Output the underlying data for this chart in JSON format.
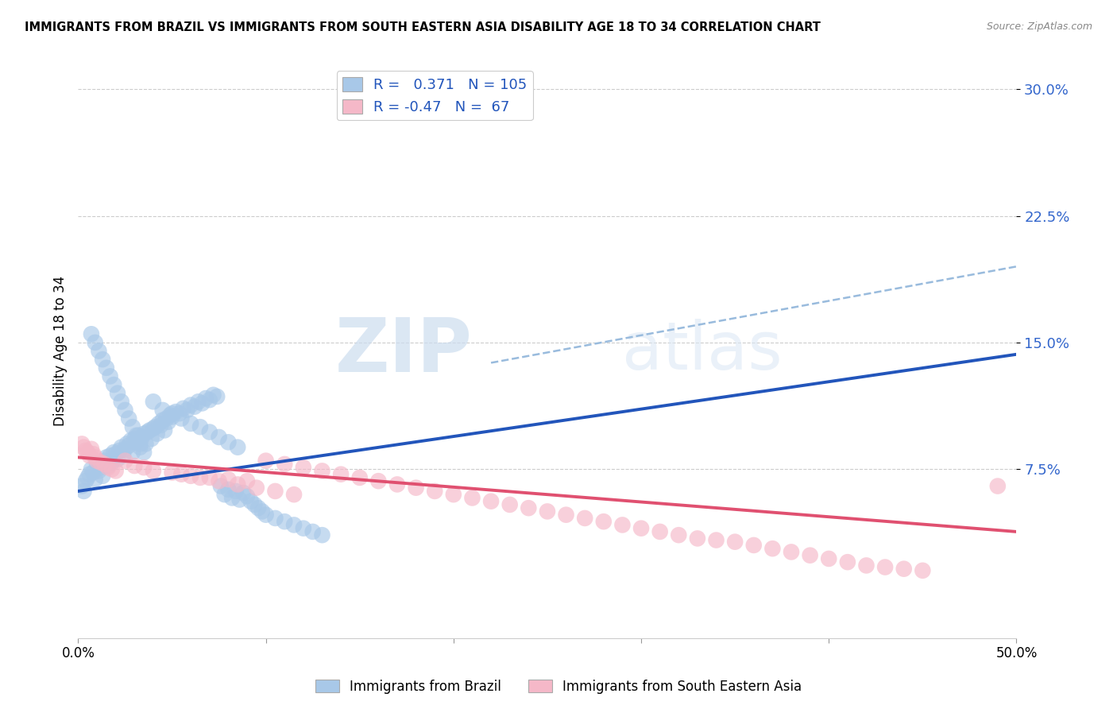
{
  "title": "IMMIGRANTS FROM BRAZIL VS IMMIGRANTS FROM SOUTH EASTERN ASIA DISABILITY AGE 18 TO 34 CORRELATION CHART",
  "source": "Source: ZipAtlas.com",
  "ylabel": "Disability Age 18 to 34",
  "ytick_values": [
    0.075,
    0.15,
    0.225,
    0.3
  ],
  "ytick_labels": [
    "7.5%",
    "15.0%",
    "22.5%",
    "30.0%"
  ],
  "xlim": [
    0.0,
    0.5
  ],
  "ylim": [
    -0.025,
    0.315
  ],
  "brazil_R": 0.371,
  "brazil_N": 105,
  "sea_R": -0.47,
  "sea_N": 67,
  "brazil_color": "#a8c8e8",
  "sea_color": "#f5b8c8",
  "brazil_line_color": "#2255bb",
  "sea_line_color": "#e05070",
  "dashed_line_color": "#99bbdd",
  "legend_label_brazil": "Immigrants from Brazil",
  "legend_label_sea": "Immigrants from South Eastern Asia",
  "watermark_zip": "ZIP",
  "watermark_atlas": "atlas",
  "brazil_trend_y_start": 0.062,
  "brazil_trend_y_end": 0.143,
  "sea_trend_y_start": 0.082,
  "sea_trend_y_end": 0.038,
  "dashed_trend_x_start": 0.22,
  "dashed_trend_x_end": 0.5,
  "dashed_trend_y_start": 0.138,
  "dashed_trend_y_end": 0.195,
  "brazil_scatter_x": [
    0.002,
    0.003,
    0.004,
    0.005,
    0.006,
    0.007,
    0.008,
    0.009,
    0.01,
    0.011,
    0.012,
    0.013,
    0.014,
    0.015,
    0.016,
    0.017,
    0.018,
    0.019,
    0.02,
    0.021,
    0.022,
    0.023,
    0.024,
    0.025,
    0.026,
    0.027,
    0.028,
    0.029,
    0.03,
    0.031,
    0.032,
    0.033,
    0.034,
    0.035,
    0.036,
    0.037,
    0.038,
    0.039,
    0.04,
    0.041,
    0.042,
    0.043,
    0.044,
    0.045,
    0.046,
    0.047,
    0.048,
    0.049,
    0.05,
    0.052,
    0.054,
    0.056,
    0.058,
    0.06,
    0.062,
    0.064,
    0.066,
    0.068,
    0.07,
    0.072,
    0.074,
    0.076,
    0.078,
    0.08,
    0.082,
    0.084,
    0.086,
    0.088,
    0.09,
    0.092,
    0.094,
    0.096,
    0.098,
    0.1,
    0.105,
    0.11,
    0.115,
    0.12,
    0.125,
    0.13,
    0.007,
    0.009,
    0.011,
    0.013,
    0.015,
    0.017,
    0.019,
    0.021,
    0.023,
    0.025,
    0.027,
    0.029,
    0.031,
    0.033,
    0.035,
    0.04,
    0.045,
    0.05,
    0.055,
    0.06,
    0.065,
    0.07,
    0.075,
    0.08,
    0.085
  ],
  "brazil_scatter_y": [
    0.065,
    0.062,
    0.068,
    0.07,
    0.072,
    0.075,
    0.073,
    0.069,
    0.078,
    0.074,
    0.076,
    0.071,
    0.08,
    0.082,
    0.077,
    0.083,
    0.079,
    0.085,
    0.084,
    0.081,
    0.086,
    0.088,
    0.083,
    0.087,
    0.09,
    0.089,
    0.092,
    0.085,
    0.093,
    0.091,
    0.095,
    0.088,
    0.094,
    0.096,
    0.09,
    0.097,
    0.098,
    0.093,
    0.099,
    0.1,
    0.096,
    0.102,
    0.101,
    0.104,
    0.098,
    0.105,
    0.103,
    0.107,
    0.106,
    0.109,
    0.108,
    0.111,
    0.11,
    0.113,
    0.112,
    0.115,
    0.114,
    0.117,
    0.116,
    0.119,
    0.118,
    0.065,
    0.06,
    0.063,
    0.058,
    0.062,
    0.057,
    0.061,
    0.059,
    0.056,
    0.054,
    0.052,
    0.05,
    0.048,
    0.046,
    0.044,
    0.042,
    0.04,
    0.038,
    0.036,
    0.155,
    0.15,
    0.145,
    0.14,
    0.135,
    0.13,
    0.125,
    0.12,
    0.115,
    0.11,
    0.105,
    0.1,
    0.095,
    0.09,
    0.085,
    0.115,
    0.11,
    0.108,
    0.105,
    0.102,
    0.1,
    0.097,
    0.094,
    0.091,
    0.088
  ],
  "sea_scatter_x": [
    0.002,
    0.003,
    0.004,
    0.005,
    0.006,
    0.007,
    0.008,
    0.009,
    0.01,
    0.012,
    0.014,
    0.016,
    0.018,
    0.02,
    0.025,
    0.03,
    0.035,
    0.04,
    0.05,
    0.06,
    0.07,
    0.08,
    0.09,
    0.1,
    0.11,
    0.12,
    0.13,
    0.14,
    0.15,
    0.16,
    0.17,
    0.18,
    0.19,
    0.2,
    0.21,
    0.22,
    0.23,
    0.24,
    0.25,
    0.26,
    0.27,
    0.28,
    0.29,
    0.3,
    0.31,
    0.32,
    0.33,
    0.34,
    0.35,
    0.36,
    0.37,
    0.38,
    0.39,
    0.4,
    0.41,
    0.42,
    0.43,
    0.44,
    0.45,
    0.49,
    0.055,
    0.065,
    0.075,
    0.085,
    0.095,
    0.105,
    0.115
  ],
  "sea_scatter_y": [
    0.09,
    0.088,
    0.086,
    0.085,
    0.083,
    0.087,
    0.084,
    0.082,
    0.08,
    0.079,
    0.078,
    0.076,
    0.075,
    0.074,
    0.08,
    0.077,
    0.076,
    0.074,
    0.073,
    0.071,
    0.07,
    0.069,
    0.068,
    0.08,
    0.078,
    0.076,
    0.074,
    0.072,
    0.07,
    0.068,
    0.066,
    0.064,
    0.062,
    0.06,
    0.058,
    0.056,
    0.054,
    0.052,
    0.05,
    0.048,
    0.046,
    0.044,
    0.042,
    0.04,
    0.038,
    0.036,
    0.034,
    0.033,
    0.032,
    0.03,
    0.028,
    0.026,
    0.024,
    0.022,
    0.02,
    0.018,
    0.017,
    0.016,
    0.015,
    0.065,
    0.072,
    0.07,
    0.068,
    0.066,
    0.064,
    0.062,
    0.06
  ]
}
